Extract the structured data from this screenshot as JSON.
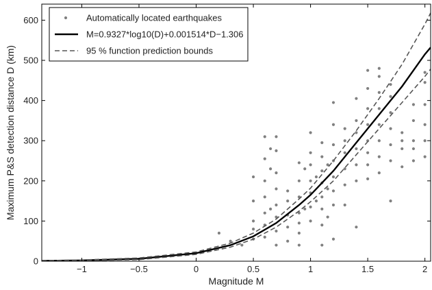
{
  "chart_data": {
    "type": "scatter",
    "xlabel": "Magnitude M",
    "ylabel": "Maximum P&S detection distance D (km)",
    "xlim": [
      -1.35,
      2.05
    ],
    "ylim": [
      0,
      640
    ],
    "xticks": [
      -1,
      -0.5,
      0,
      0.5,
      1,
      1.5,
      2
    ],
    "xtick_labels": [
      "−1",
      "−0.5",
      "0",
      "0.5",
      "1",
      "1.5",
      "2"
    ],
    "yticks": [
      0,
      100,
      200,
      300,
      400,
      500,
      600
    ],
    "ytick_labels": [
      "0",
      "100",
      "200",
      "300",
      "400",
      "500",
      "600"
    ],
    "grid": false,
    "legend_position": "top-left",
    "legend": [
      {
        "label": "Automatically located earthquakes",
        "style": "dot",
        "color": "#808080"
      },
      {
        "label": "M=0.9327*log10(D)+0.001514*D−1.306",
        "style": "solid",
        "color": "#000000"
      },
      {
        "label": "95 % function prediction bounds",
        "style": "dashed",
        "color": "#555555"
      }
    ],
    "series": [
      {
        "name": "Automatically located earthquakes",
        "kind": "scatter",
        "color": "#808080",
        "points": [
          [
            0.2,
            70
          ],
          [
            0.3,
            50
          ],
          [
            0.4,
            40
          ],
          [
            0.5,
            55
          ],
          [
            0.5,
            80
          ],
          [
            0.5,
            100
          ],
          [
            0.5,
            150
          ],
          [
            0.5,
            210
          ],
          [
            0.6,
            60
          ],
          [
            0.6,
            90
          ],
          [
            0.6,
            120
          ],
          [
            0.6,
            160
          ],
          [
            0.6,
            200
          ],
          [
            0.6,
            255
          ],
          [
            0.6,
            310
          ],
          [
            0.65,
            130
          ],
          [
            0.65,
            230
          ],
          [
            0.65,
            280
          ],
          [
            0.7,
            40
          ],
          [
            0.7,
            75
          ],
          [
            0.7,
            110
          ],
          [
            0.7,
            140
          ],
          [
            0.7,
            180
          ],
          [
            0.7,
            220
          ],
          [
            0.7,
            275
          ],
          [
            0.7,
            310
          ],
          [
            0.8,
            50
          ],
          [
            0.8,
            85
          ],
          [
            0.8,
            115
          ],
          [
            0.8,
            150
          ],
          [
            0.8,
            175
          ],
          [
            0.9,
            40
          ],
          [
            0.9,
            70
          ],
          [
            0.9,
            95
          ],
          [
            0.9,
            120
          ],
          [
            0.9,
            160
          ],
          [
            0.9,
            200
          ],
          [
            0.9,
            245
          ],
          [
            0.95,
            130
          ],
          [
            0.95,
            230
          ],
          [
            1.0,
            100
          ],
          [
            1.0,
            135
          ],
          [
            1.0,
            170
          ],
          [
            1.0,
            200
          ],
          [
            1.0,
            240
          ],
          [
            1.0,
            270
          ],
          [
            1.0,
            320
          ],
          [
            1.05,
            150
          ],
          [
            1.05,
            210
          ],
          [
            1.1,
            40
          ],
          [
            1.1,
            90
          ],
          [
            1.1,
            130
          ],
          [
            1.1,
            160
          ],
          [
            1.1,
            195
          ],
          [
            1.1,
            225
          ],
          [
            1.1,
            260
          ],
          [
            1.1,
            295
          ],
          [
            1.15,
            110
          ],
          [
            1.15,
            180
          ],
          [
            1.15,
            240
          ],
          [
            1.2,
            55
          ],
          [
            1.2,
            140
          ],
          [
            1.2,
            175
          ],
          [
            1.2,
            210
          ],
          [
            1.2,
            250
          ],
          [
            1.2,
            290
          ],
          [
            1.2,
            340
          ],
          [
            1.2,
            395
          ],
          [
            1.3,
            140
          ],
          [
            1.3,
            190
          ],
          [
            1.3,
            230
          ],
          [
            1.3,
            270
          ],
          [
            1.3,
            300
          ],
          [
            1.3,
            330
          ],
          [
            1.4,
            85
          ],
          [
            1.4,
            200
          ],
          [
            1.4,
            240
          ],
          [
            1.4,
            280
          ],
          [
            1.4,
            320
          ],
          [
            1.4,
            350
          ],
          [
            1.4,
            405
          ],
          [
            1.5,
            205
          ],
          [
            1.5,
            240
          ],
          [
            1.5,
            270
          ],
          [
            1.5,
            300
          ],
          [
            1.5,
            340
          ],
          [
            1.5,
            380
          ],
          [
            1.5,
            430
          ],
          [
            1.5,
            475
          ],
          [
            1.6,
            220
          ],
          [
            1.6,
            260
          ],
          [
            1.6,
            300
          ],
          [
            1.6,
            340
          ],
          [
            1.6,
            380
          ],
          [
            1.6,
            420
          ],
          [
            1.6,
            460
          ],
          [
            1.6,
            480
          ],
          [
            1.7,
            150
          ],
          [
            1.7,
            250
          ],
          [
            1.7,
            290
          ],
          [
            1.7,
            330
          ],
          [
            1.7,
            370
          ],
          [
            1.7,
            410
          ],
          [
            1.7,
            440
          ],
          [
            1.8,
            235
          ],
          [
            1.8,
            280
          ],
          [
            1.8,
            300
          ],
          [
            1.8,
            320
          ],
          [
            1.9,
            250
          ],
          [
            1.9,
            280
          ],
          [
            1.9,
            300
          ],
          [
            1.9,
            350
          ],
          [
            1.9,
            390
          ],
          [
            2.0,
            260
          ],
          [
            2.0,
            300
          ],
          [
            2.0,
            340
          ],
          [
            2.0,
            390
          ],
          [
            2.0,
            445
          ],
          [
            2.0,
            470
          ]
        ]
      },
      {
        "name": "M=0.9327*log10(D)+0.001514*D−1.306",
        "kind": "line",
        "style": "solid",
        "color": "#000000",
        "points": [
          [
            -1.35,
            1
          ],
          [
            -1.0,
            2
          ],
          [
            -0.5,
            6
          ],
          [
            0.0,
            20
          ],
          [
            0.3,
            40
          ],
          [
            0.5,
            62
          ],
          [
            0.7,
            95
          ],
          [
            0.9,
            140
          ],
          [
            1.0,
            165
          ],
          [
            1.2,
            225
          ],
          [
            1.4,
            295
          ],
          [
            1.6,
            365
          ],
          [
            1.8,
            435
          ],
          [
            2.0,
            515
          ],
          [
            2.05,
            532
          ]
        ]
      },
      {
        "name": "95 % function prediction bounds (upper)",
        "kind": "line",
        "style": "dashed",
        "color": "#555555",
        "points": [
          [
            -1.35,
            1.5
          ],
          [
            -1.0,
            3
          ],
          [
            -0.5,
            8
          ],
          [
            0.0,
            23
          ],
          [
            0.3,
            45
          ],
          [
            0.5,
            70
          ],
          [
            0.7,
            105
          ],
          [
            0.9,
            155
          ],
          [
            1.0,
            182
          ],
          [
            1.2,
            250
          ],
          [
            1.4,
            325
          ],
          [
            1.6,
            405
          ],
          [
            1.8,
            490
          ],
          [
            2.0,
            590
          ],
          [
            2.05,
            618
          ]
        ]
      },
      {
        "name": "95 % function prediction bounds (lower)",
        "kind": "line",
        "style": "dashed",
        "color": "#555555",
        "points": [
          [
            -1.35,
            0.5
          ],
          [
            -1.0,
            1
          ],
          [
            -0.5,
            4
          ],
          [
            0.0,
            17
          ],
          [
            0.3,
            35
          ],
          [
            0.5,
            55
          ],
          [
            0.7,
            85
          ],
          [
            0.9,
            125
          ],
          [
            1.0,
            148
          ],
          [
            1.2,
            200
          ],
          [
            1.4,
            265
          ],
          [
            1.6,
            330
          ],
          [
            1.8,
            395
          ],
          [
            2.0,
            460
          ],
          [
            2.05,
            478
          ]
        ]
      }
    ]
  }
}
